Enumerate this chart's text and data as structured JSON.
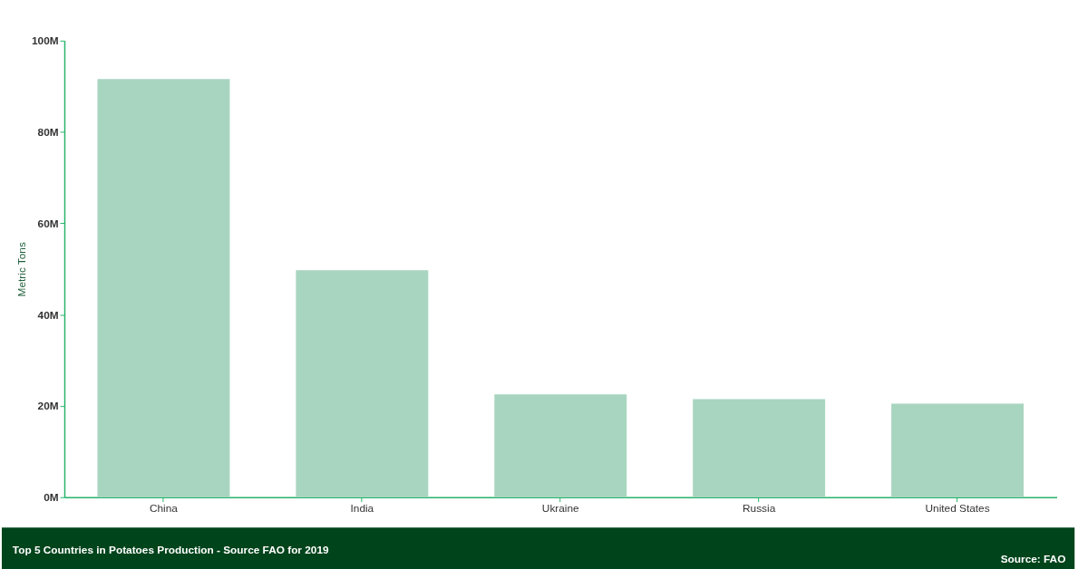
{
  "chart_data": {
    "type": "bar",
    "title": "Top 5 Countries in Potatoes Production - Source FAO for 2019",
    "ylabel": "Metric Tons",
    "categories": [
      "China",
      "India",
      "Ukraine",
      "Russia",
      "United States"
    ],
    "values": [
      91.6,
      49.7,
      22.5,
      21.5,
      20.5
    ],
    "color": "#a8d5c0",
    "ylim": [
      0,
      100
    ],
    "yticks": [
      {
        "value": 0,
        "label": "0M"
      },
      {
        "value": 20,
        "label": "20M"
      },
      {
        "value": 40,
        "label": "40M"
      },
      {
        "value": 60,
        "label": "60M"
      },
      {
        "value": 80,
        "label": "80M"
      },
      {
        "value": 100,
        "label": "100M"
      }
    ],
    "annotations": [
      "Source:  FAO"
    ],
    "grid": false
  }
}
